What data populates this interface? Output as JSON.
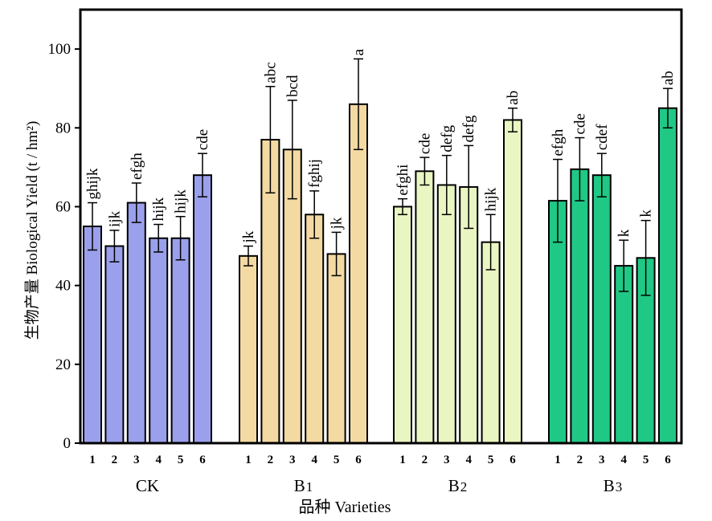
{
  "chart_data": {
    "type": "bar",
    "xlabel": "品种 Varieties",
    "ylabel": "生物产量 Biological Yield (t / hm²)",
    "ylim": [
      0,
      110
    ],
    "yticks": [
      "0",
      "20",
      "40",
      "60",
      "80",
      "100"
    ],
    "grid": false,
    "legend": "none",
    "groups": [
      {
        "name": "CK",
        "color": "#9ba0ec",
        "categories": [
          "1",
          "2",
          "3",
          "4",
          "5",
          "6"
        ],
        "values": [
          55,
          50,
          61,
          52,
          52,
          68
        ],
        "errors": [
          6,
          4,
          5,
          3.5,
          5.5,
          5.5
        ],
        "letters": [
          "ghijk",
          "ijk",
          "efgh",
          "hijk",
          "hijk",
          "cde"
        ]
      },
      {
        "name": "B1",
        "color": "#f3d9a2",
        "categories": [
          "1",
          "2",
          "3",
          "4",
          "5",
          "6"
        ],
        "values": [
          47.5,
          77,
          74.5,
          58,
          48,
          86
        ],
        "errors": [
          2.5,
          13.5,
          12.5,
          6,
          5.5,
          11.5
        ],
        "letters": [
          "jk",
          "abc",
          "bcd",
          "fghij",
          "jk",
          "a"
        ]
      },
      {
        "name": "B2",
        "color": "#e9f6c2",
        "categories": [
          "1",
          "2",
          "3",
          "4",
          "5",
          "6"
        ],
        "values": [
          60,
          69,
          65.5,
          65,
          51,
          82
        ],
        "errors": [
          2,
          3.5,
          7.5,
          10.5,
          7,
          3
        ],
        "letters": [
          "efghi",
          "cde",
          "defg",
          "defg",
          "hijk",
          "ab"
        ]
      },
      {
        "name": "B3",
        "color": "#20c885",
        "categories": [
          "1",
          "2",
          "3",
          "4",
          "5",
          "6"
        ],
        "values": [
          61.5,
          69.5,
          68,
          45,
          47,
          85
        ],
        "errors": [
          10.5,
          8,
          5.5,
          6.5,
          9.5,
          5
        ],
        "letters": [
          "efgh",
          "cde",
          "cdef",
          "k",
          "k",
          "ab"
        ]
      }
    ]
  }
}
